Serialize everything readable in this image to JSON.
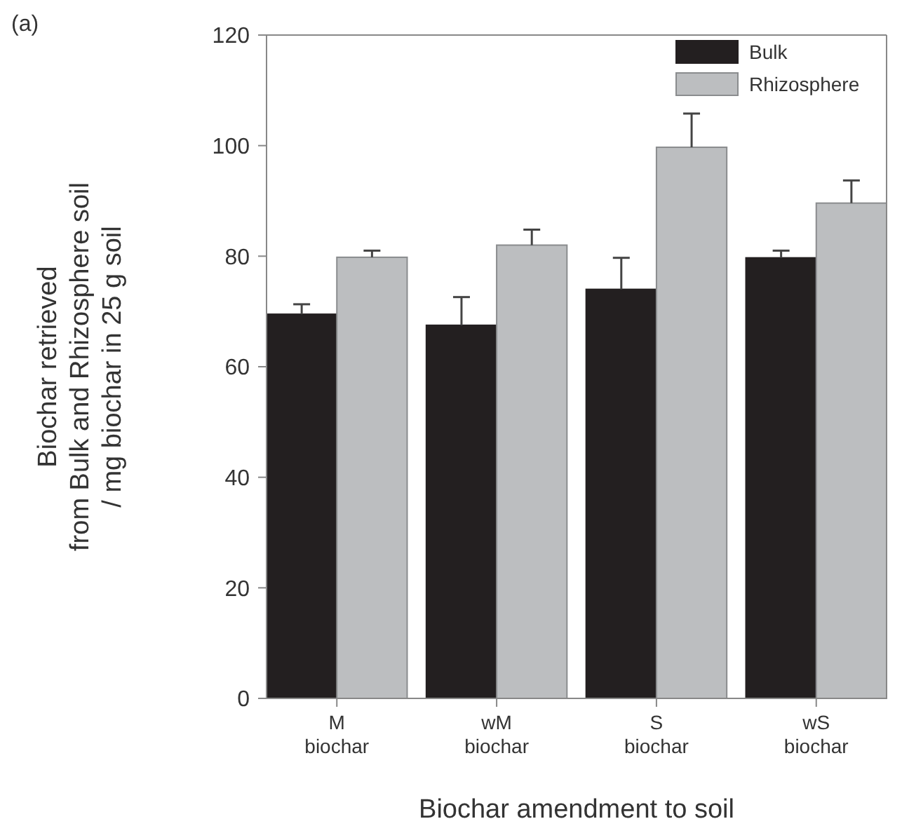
{
  "chart_data": {
    "type": "bar",
    "title": "(a)",
    "xlabel": "Biochar amendment to soil",
    "ylabel": "Biochar retrieved\nfrom Bulk and Rhizosphere soil\n/ mg biochar in 25 g soil",
    "categories": [
      "M\nbiochar",
      "wM\nbiochar",
      "S\nbiochar",
      "wS\nbiochar"
    ],
    "series": [
      {
        "name": "Bulk",
        "color": "#231f20",
        "values": [
          69.5,
          67.5,
          74,
          79.7
        ],
        "errors": [
          [
            69.5,
            71.3
          ],
          [
            67.5,
            72.6
          ],
          [
            74,
            79.7
          ],
          [
            79.7,
            81
          ]
        ]
      },
      {
        "name": "Rhizosphere",
        "color": "#bcbec0",
        "values": [
          79.8,
          82,
          99.7,
          89.6
        ],
        "errors": [
          [
            79.8,
            81
          ],
          [
            82,
            84.8
          ],
          [
            99.7,
            105.8
          ],
          [
            89.6,
            93.7
          ]
        ]
      }
    ],
    "ylim": [
      0,
      120
    ],
    "yticks": [
      0,
      20,
      40,
      60,
      80,
      100,
      120
    ],
    "legend": "top right"
  }
}
